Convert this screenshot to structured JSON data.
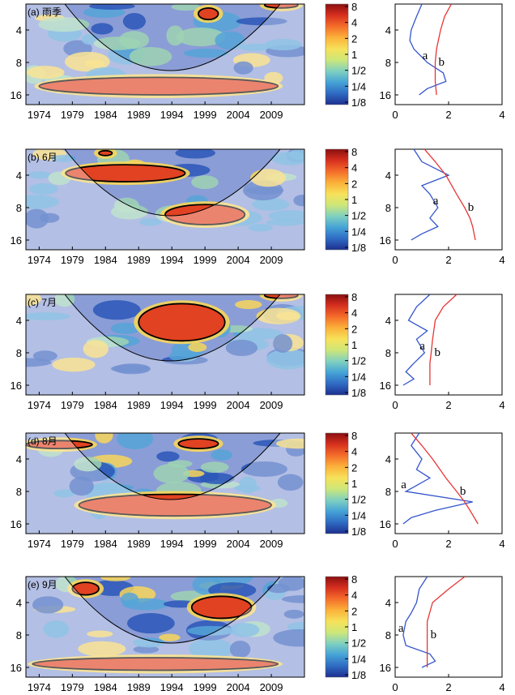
{
  "colors": {
    "very_high": "#e03a1e",
    "high": "#f49a3a",
    "mid_high": "#f7d65a",
    "mid": "#9ed3b3",
    "low": "#55a4d8",
    "very_low": "#2a57b8",
    "outside_coi": "#8b9dd6",
    "line_a": "#3355cc",
    "line_b": "#e83535"
  },
  "colorbar": {
    "ticks": [
      "8",
      "4",
      "2",
      "1",
      "1/2",
      "1/4",
      "1/8"
    ],
    "stops": [
      "#8a0f10",
      "#d7301f",
      "#f46d2a",
      "#fbb13a",
      "#f7e15a",
      "#cde779",
      "#7fd0c0",
      "#45a3d6",
      "#2f6bc3",
      "#1d2f8e"
    ]
  },
  "chart_data": [
    {
      "type": "heatmap",
      "title": "(a) 雨季",
      "xlabel": "",
      "ylabel": "",
      "xticks": [
        "1974",
        "1979",
        "1984",
        "1989",
        "1994",
        "1999",
        "2004",
        "2009"
      ],
      "xlim": [
        1972,
        2014
      ],
      "yticks": [
        "4",
        "8",
        "16"
      ],
      "ylim_log2": [
        1.2,
        4.3
      ],
      "significant_regions": [
        {
          "x_range": [
            1974,
            2010
          ],
          "period_range": [
            11,
            16
          ]
        },
        {
          "x_range": [
            1998,
            2001
          ],
          "period_range": [
            2.5,
            3.2
          ]
        },
        {
          "x_range": [
            2008,
            2013
          ],
          "period_range": [
            2.2,
            2.5
          ]
        }
      ],
      "spectrum": {
        "type": "line",
        "xticks": [
          "0",
          "2",
          "4"
        ],
        "xlim": [
          0,
          4
        ],
        "series": [
          {
            "name": "a",
            "period": [
              2.3,
              3.0,
              4.0,
              5.0,
              6.0,
              8.0,
              10.0,
              12.0,
              14.0,
              16.0
            ],
            "power": [
              1.0,
              0.8,
              0.6,
              0.55,
              0.7,
              1.2,
              1.8,
              1.9,
              1.2,
              0.9
            ]
          },
          {
            "name": "b",
            "period": [
              2.3,
              3.0,
              4.0,
              6.0,
              8.0,
              10.0,
              12.0,
              16.0
            ],
            "power": [
              2.1,
              1.85,
              1.7,
              1.55,
              1.5,
              1.5,
              1.5,
              1.55
            ]
          }
        ]
      }
    },
    {
      "type": "heatmap",
      "title": "(b) 6月",
      "xlabel": "",
      "ylabel": "",
      "xticks": [
        "1974",
        "1979",
        "1984",
        "1989",
        "1994",
        "1999",
        "2004",
        "2009"
      ],
      "xlim": [
        1972,
        2014
      ],
      "yticks": [
        "4",
        "8",
        "16"
      ],
      "ylim_log2": [
        1.2,
        4.3
      ],
      "significant_regions": [
        {
          "x_range": [
            1978,
            1996
          ],
          "period_range": [
            3.2,
            4.6
          ]
        },
        {
          "x_range": [
            1993,
            2005
          ],
          "period_range": [
            7.5,
            11.5
          ]
        },
        {
          "x_range": [
            1983,
            1985
          ],
          "period_range": [
            2.4,
            2.6
          ]
        }
      ],
      "spectrum": {
        "type": "line",
        "xticks": [
          "0",
          "2",
          "4"
        ],
        "xlim": [
          0,
          4
        ],
        "series": [
          {
            "name": "a",
            "period": [
              2.3,
              3.0,
              4.0,
              5.0,
              6.0,
              8.0,
              10.0,
              12.0,
              14.0,
              16.0
            ],
            "power": [
              0.7,
              1.0,
              2.0,
              1.0,
              1.3,
              1.6,
              1.3,
              1.6,
              1.0,
              0.6
            ]
          },
          {
            "name": "b",
            "period": [
              2.3,
              3.0,
              4.0,
              6.0,
              8.0,
              10.0,
              12.0,
              16.0
            ],
            "power": [
              1.1,
              1.5,
              1.9,
              2.3,
              2.6,
              2.8,
              2.9,
              3.0
            ]
          }
        ]
      }
    },
    {
      "type": "heatmap",
      "title": "(c) 7月",
      "xlabel": "",
      "ylabel": "",
      "xticks": [
        "1974",
        "1979",
        "1984",
        "1989",
        "1994",
        "1999",
        "2004",
        "2009"
      ],
      "xlim": [
        1972,
        2014
      ],
      "yticks": [
        "4",
        "8",
        "16"
      ],
      "ylim_log2": [
        1.2,
        4.3
      ],
      "significant_regions": [
        {
          "x_range": [
            1989,
            2002
          ],
          "period_range": [
            2.8,
            6.2
          ]
        },
        {
          "x_range": [
            2008,
            2013
          ],
          "period_range": [
            2.2,
            2.5
          ]
        }
      ],
      "spectrum": {
        "type": "line",
        "xticks": [
          "0",
          "2",
          "4"
        ],
        "xlim": [
          0,
          4
        ],
        "series": [
          {
            "name": "a",
            "period": [
              2.3,
              3.0,
              4.0,
              5.0,
              6.0,
              8.0,
              10.0,
              12.0,
              14.0,
              16.0
            ],
            "power": [
              1.3,
              0.8,
              0.5,
              1.2,
              0.8,
              1.1,
              0.7,
              0.4,
              0.7,
              0.3
            ]
          },
          {
            "name": "b",
            "period": [
              2.3,
              3.0,
              4.0,
              6.0,
              8.0,
              10.0,
              12.0,
              16.0
            ],
            "power": [
              2.3,
              1.8,
              1.5,
              1.4,
              1.35,
              1.3,
              1.3,
              1.3
            ]
          }
        ]
      }
    },
    {
      "type": "heatmap",
      "title": "(d) 8月",
      "xlabel": "",
      "ylabel": "",
      "xticks": [
        "1974",
        "1979",
        "1984",
        "1989",
        "1994",
        "1999",
        "2004",
        "2009"
      ],
      "xlim": [
        1972,
        2014
      ],
      "yticks": [
        "4",
        "8",
        "16"
      ],
      "ylim_log2": [
        1.2,
        4.3
      ],
      "significant_regions": [
        {
          "x_range": [
            1972,
            1982
          ],
          "period_range": [
            2.7,
            3.2
          ]
        },
        {
          "x_range": [
            1995,
            2001
          ],
          "period_range": [
            2.6,
            3.2
          ]
        },
        {
          "x_range": [
            1980,
            2009
          ],
          "period_range": [
            8.5,
            13.5
          ]
        }
      ],
      "spectrum": {
        "type": "line",
        "xticks": [
          "0",
          "2",
          "4"
        ],
        "xlim": [
          0,
          4
        ],
        "series": [
          {
            "name": "a",
            "period": [
              2.3,
              3.0,
              4.0,
              5.0,
              6.0,
              8.0,
              10.0,
              12.0,
              14.0,
              16.0
            ],
            "power": [
              0.9,
              0.6,
              1.0,
              0.8,
              1.3,
              0.4,
              2.9,
              1.5,
              0.6,
              0.3
            ]
          },
          {
            "name": "b",
            "period": [
              2.3,
              3.0,
              4.0,
              6.0,
              8.0,
              10.0,
              12.0,
              16.0
            ],
            "power": [
              0.6,
              1.0,
              1.4,
              1.9,
              2.3,
              2.6,
              2.8,
              3.1
            ]
          }
        ]
      }
    },
    {
      "type": "heatmap",
      "title": "(e) 9月",
      "xlabel": "",
      "ylabel": "",
      "xticks": [
        "1974",
        "1979",
        "1984",
        "1989",
        "1994",
        "1999",
        "2004",
        "2009"
      ],
      "xlim": [
        1972,
        2014
      ],
      "yticks": [
        "4",
        "8",
        "16"
      ],
      "ylim_log2": [
        1.2,
        4.3
      ],
      "significant_regions": [
        {
          "x_range": [
            1979,
            1983
          ],
          "period_range": [
            2.6,
            3.4
          ]
        },
        {
          "x_range": [
            1997,
            2006
          ],
          "period_range": [
            3.5,
            5.6
          ]
        },
        {
          "x_range": [
            1973,
            2010
          ],
          "period_range": [
            13.0,
            17.0
          ]
        }
      ],
      "spectrum": {
        "type": "line",
        "xticks": [
          "0",
          "2",
          "4"
        ],
        "xlim": [
          0,
          4
        ],
        "series": [
          {
            "name": "a",
            "period": [
              2.3,
              3.0,
              4.0,
              5.0,
              6.0,
              8.0,
              10.0,
              12.0,
              14.0,
              16.0
            ],
            "power": [
              1.2,
              0.9,
              0.8,
              0.6,
              0.4,
              0.3,
              0.4,
              1.3,
              1.5,
              1.0
            ]
          },
          {
            "name": "b",
            "period": [
              2.3,
              3.0,
              4.0,
              6.0,
              8.0,
              10.0,
              12.0,
              16.0
            ],
            "power": [
              2.6,
              2.0,
              1.4,
              1.2,
              1.2,
              1.2,
              1.2,
              1.2
            ]
          }
        ]
      }
    }
  ]
}
